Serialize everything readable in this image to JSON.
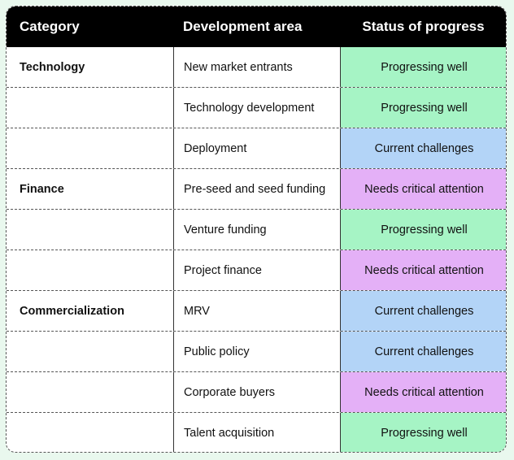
{
  "headers": {
    "category": "Category",
    "area": "Development area",
    "status": "Status of progress"
  },
  "status_colors": {
    "Progressing well": "#a6f4c5",
    "Current challenges": "#b3d4f7",
    "Needs critical attention": "#e4b0f7"
  },
  "rows": [
    {
      "category": "Technology",
      "area": "New market entrants",
      "status": "Progressing well"
    },
    {
      "category": "",
      "area": "Technology development",
      "status": "Progressing well"
    },
    {
      "category": "",
      "area": "Deployment",
      "status": "Current challenges"
    },
    {
      "category": "Finance",
      "area": "Pre-seed and seed funding",
      "status": "Needs critical attention"
    },
    {
      "category": "",
      "area": "Venture funding",
      "status": "Progressing well"
    },
    {
      "category": "",
      "area": "Project finance",
      "status": "Needs critical attention"
    },
    {
      "category": "Commercialization",
      "area": "MRV",
      "status": "Current challenges"
    },
    {
      "category": "",
      "area": "Public policy",
      "status": "Current challenges"
    },
    {
      "category": "",
      "area": "Corporate buyers",
      "status": "Needs critical attention"
    },
    {
      "category": "",
      "area": "Talent acquisition",
      "status": "Progressing well"
    }
  ]
}
